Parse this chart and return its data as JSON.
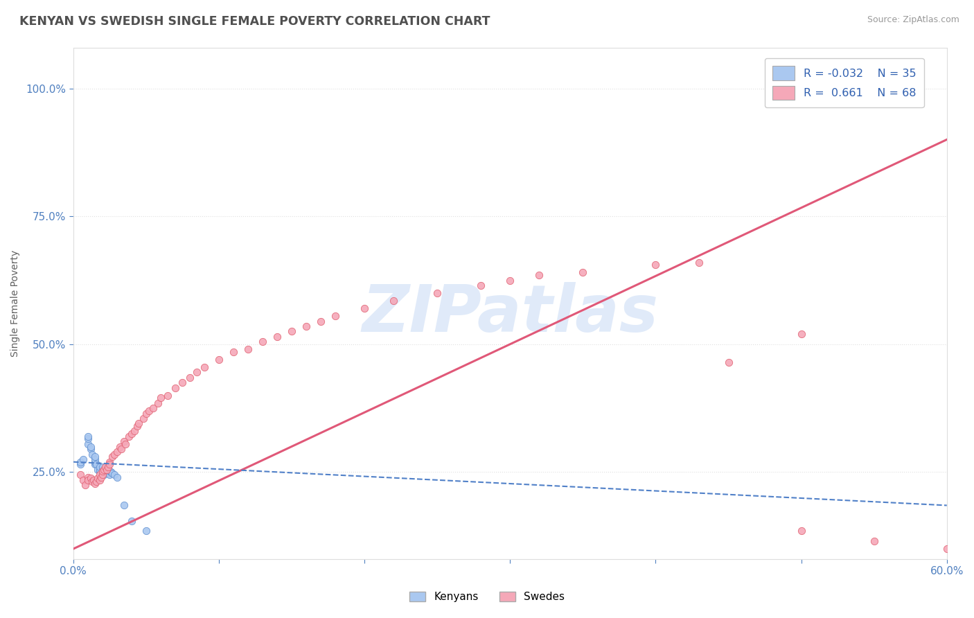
{
  "title": "KENYAN VS SWEDISH SINGLE FEMALE POVERTY CORRELATION CHART",
  "source": "Source: ZipAtlas.com",
  "ylabel": "Single Female Poverty",
  "xlim": [
    0.0,
    0.6
  ],
  "ylim": [
    0.08,
    1.08
  ],
  "kenyan_color": "#aac8f0",
  "kenyan_edge": "#6090d0",
  "swede_color": "#f5a8b8",
  "swede_edge": "#e06070",
  "kenyan_trend_color": "#5080c8",
  "swede_trend_color": "#e05878",
  "watermark": "ZIPatlas",
  "watermark_color": "#ccddf5",
  "background_color": "#ffffff",
  "grid_color": "#dddddd",
  "title_color": "#505050",
  "tick_color": "#5080c0",
  "kenyan_points": [
    [
      0.005,
      0.265
    ],
    [
      0.005,
      0.27
    ],
    [
      0.007,
      0.275
    ],
    [
      0.01,
      0.305
    ],
    [
      0.01,
      0.315
    ],
    [
      0.01,
      0.32
    ],
    [
      0.012,
      0.295
    ],
    [
      0.012,
      0.3
    ],
    [
      0.013,
      0.285
    ],
    [
      0.015,
      0.265
    ],
    [
      0.015,
      0.27
    ],
    [
      0.015,
      0.275
    ],
    [
      0.015,
      0.28
    ],
    [
      0.016,
      0.265
    ],
    [
      0.017,
      0.255
    ],
    [
      0.018,
      0.25
    ],
    [
      0.018,
      0.255
    ],
    [
      0.018,
      0.26
    ],
    [
      0.02,
      0.245
    ],
    [
      0.02,
      0.25
    ],
    [
      0.02,
      0.255
    ],
    [
      0.02,
      0.26
    ],
    [
      0.021,
      0.245
    ],
    [
      0.022,
      0.25
    ],
    [
      0.023,
      0.255
    ],
    [
      0.024,
      0.248
    ],
    [
      0.025,
      0.245
    ],
    [
      0.025,
      0.252
    ],
    [
      0.026,
      0.25
    ],
    [
      0.027,
      0.248
    ],
    [
      0.028,
      0.245
    ],
    [
      0.03,
      0.24
    ],
    [
      0.035,
      0.185
    ],
    [
      0.04,
      0.155
    ],
    [
      0.05,
      0.135
    ]
  ],
  "swede_points": [
    [
      0.005,
      0.245
    ],
    [
      0.007,
      0.235
    ],
    [
      0.008,
      0.225
    ],
    [
      0.01,
      0.24
    ],
    [
      0.01,
      0.235
    ],
    [
      0.012,
      0.238
    ],
    [
      0.013,
      0.232
    ],
    [
      0.014,
      0.235
    ],
    [
      0.015,
      0.228
    ],
    [
      0.016,
      0.232
    ],
    [
      0.017,
      0.238
    ],
    [
      0.018,
      0.245
    ],
    [
      0.018,
      0.235
    ],
    [
      0.019,
      0.24
    ],
    [
      0.02,
      0.245
    ],
    [
      0.02,
      0.252
    ],
    [
      0.021,
      0.255
    ],
    [
      0.022,
      0.26
    ],
    [
      0.023,
      0.255
    ],
    [
      0.024,
      0.26
    ],
    [
      0.025,
      0.27
    ],
    [
      0.025,
      0.265
    ],
    [
      0.027,
      0.28
    ],
    [
      0.028,
      0.285
    ],
    [
      0.03,
      0.29
    ],
    [
      0.032,
      0.3
    ],
    [
      0.033,
      0.295
    ],
    [
      0.035,
      0.31
    ],
    [
      0.036,
      0.305
    ],
    [
      0.038,
      0.32
    ],
    [
      0.04,
      0.325
    ],
    [
      0.042,
      0.33
    ],
    [
      0.044,
      0.34
    ],
    [
      0.045,
      0.345
    ],
    [
      0.048,
      0.355
    ],
    [
      0.05,
      0.365
    ],
    [
      0.052,
      0.37
    ],
    [
      0.055,
      0.375
    ],
    [
      0.058,
      0.385
    ],
    [
      0.06,
      0.395
    ],
    [
      0.065,
      0.4
    ],
    [
      0.07,
      0.415
    ],
    [
      0.075,
      0.425
    ],
    [
      0.08,
      0.435
    ],
    [
      0.085,
      0.445
    ],
    [
      0.09,
      0.455
    ],
    [
      0.1,
      0.47
    ],
    [
      0.11,
      0.485
    ],
    [
      0.12,
      0.49
    ],
    [
      0.13,
      0.505
    ],
    [
      0.14,
      0.515
    ],
    [
      0.15,
      0.525
    ],
    [
      0.16,
      0.535
    ],
    [
      0.17,
      0.545
    ],
    [
      0.18,
      0.555
    ],
    [
      0.2,
      0.57
    ],
    [
      0.22,
      0.585
    ],
    [
      0.25,
      0.6
    ],
    [
      0.28,
      0.615
    ],
    [
      0.3,
      0.625
    ],
    [
      0.32,
      0.635
    ],
    [
      0.35,
      0.64
    ],
    [
      0.4,
      0.655
    ],
    [
      0.43,
      0.66
    ],
    [
      0.45,
      0.465
    ],
    [
      0.5,
      0.135
    ],
    [
      0.5,
      0.52
    ],
    [
      0.55,
      0.115
    ],
    [
      0.6,
      0.1
    ]
  ],
  "swede_line": [
    [
      0.0,
      0.1
    ],
    [
      0.6,
      0.9
    ]
  ],
  "kenyan_line": [
    [
      0.0,
      0.27
    ],
    [
      0.6,
      0.185
    ]
  ]
}
